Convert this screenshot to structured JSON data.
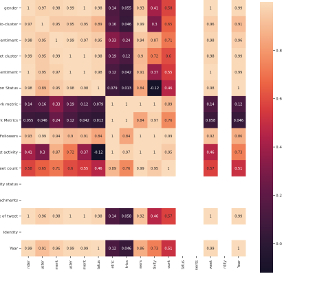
{
  "chart_data": {
    "type": "heatmap",
    "title": "",
    "row_labels": [
      "gender",
      "Bio-cluster",
      "-Sentiment",
      "weet cluster",
      "Sentiment",
      "tion Status",
      "work metric",
      "ork Metrics",
      "f Followers",
      "eet activity",
      "weet count",
      "vity status",
      "ttachments",
      "ce of tweet",
      "Identity",
      "Year"
    ],
    "col_labels": [
      "nder",
      "uster",
      "ment",
      "uster",
      "ment",
      "tatus",
      "etric",
      "trics",
      "wers",
      "tivity",
      "ount",
      "tatus",
      "nents",
      "weet",
      "ntity",
      "Year"
    ],
    "values": [
      [
        1,
        0.97,
        0.98,
        0.99,
        1,
        0.98,
        0.14,
        0.055,
        0.93,
        0.41,
        0.58,
        null,
        null,
        1,
        null,
        0.99
      ],
      [
        0.97,
        1,
        0.95,
        0.95,
        0.95,
        0.89,
        0.16,
        0.046,
        0.99,
        0.3,
        0.65,
        null,
        null,
        0.96,
        null,
        0.91
      ],
      [
        0.98,
        0.95,
        1,
        0.99,
        0.97,
        0.95,
        0.33,
        0.24,
        0.94,
        0.87,
        0.71,
        null,
        null,
        0.98,
        null,
        0.96
      ],
      [
        0.99,
        0.95,
        0.99,
        1,
        1,
        0.98,
        0.19,
        0.12,
        0.9,
        0.72,
        0.6,
        null,
        null,
        0.98,
        null,
        0.99
      ],
      [
        1,
        0.95,
        0.97,
        1,
        1,
        0.98,
        0.12,
        0.042,
        0.91,
        0.37,
        0.55,
        null,
        null,
        1,
        null,
        0.99
      ],
      [
        0.98,
        0.89,
        0.95,
        0.98,
        0.98,
        1,
        0.079,
        0.013,
        0.84,
        -0.12,
        0.46,
        null,
        null,
        0.98,
        null,
        1
      ],
      [
        0.14,
        0.16,
        0.33,
        0.19,
        0.12,
        0.079,
        1,
        1,
        1,
        1,
        0.89,
        null,
        null,
        0.14,
        null,
        0.12
      ],
      [
        0.055,
        0.046,
        0.24,
        0.12,
        0.042,
        0.013,
        1,
        1,
        0.84,
        0.97,
        0.76,
        null,
        null,
        0.058,
        null,
        0.046
      ],
      [
        0.93,
        0.99,
        0.94,
        0.9,
        0.91,
        0.84,
        1,
        0.84,
        1,
        1,
        0.99,
        null,
        null,
        0.92,
        null,
        0.86
      ],
      [
        0.41,
        0.3,
        0.87,
        0.72,
        0.37,
        -0.12,
        1,
        0.97,
        1,
        1,
        0.95,
        null,
        null,
        0.46,
        null,
        0.73
      ],
      [
        0.58,
        0.65,
        0.71,
        0.6,
        0.55,
        0.46,
        0.89,
        0.76,
        0.99,
        0.95,
        1,
        null,
        null,
        0.57,
        null,
        0.51
      ],
      [
        null,
        null,
        null,
        null,
        null,
        null,
        null,
        null,
        null,
        null,
        null,
        null,
        null,
        null,
        null,
        null
      ],
      [
        null,
        null,
        null,
        null,
        null,
        null,
        null,
        null,
        null,
        null,
        null,
        null,
        null,
        null,
        null,
        null
      ],
      [
        1,
        0.96,
        0.98,
        1,
        1,
        0.98,
        0.14,
        0.058,
        0.92,
        0.46,
        0.57,
        null,
        null,
        1,
        null,
        0.99
      ],
      [
        null,
        null,
        null,
        null,
        null,
        null,
        null,
        null,
        null,
        null,
        null,
        null,
        null,
        null,
        null,
        null
      ],
      [
        0.99,
        0.91,
        0.96,
        0.99,
        0.99,
        1,
        0.12,
        0.046,
        0.86,
        0.73,
        0.51,
        null,
        null,
        0.99,
        null,
        1
      ]
    ],
    "colorbar": {
      "vmin": -0.12,
      "vmax": 1,
      "ticks": [
        "0.0",
        "0.2",
        "0.4",
        "0.6",
        "0.8"
      ],
      "tick_values": [
        0.0,
        0.2,
        0.4,
        0.6,
        0.8
      ],
      "colormap": "rocket"
    },
    "annotations": "cell values shown in each cell",
    "grid": false,
    "legend": "colorbar-right"
  }
}
